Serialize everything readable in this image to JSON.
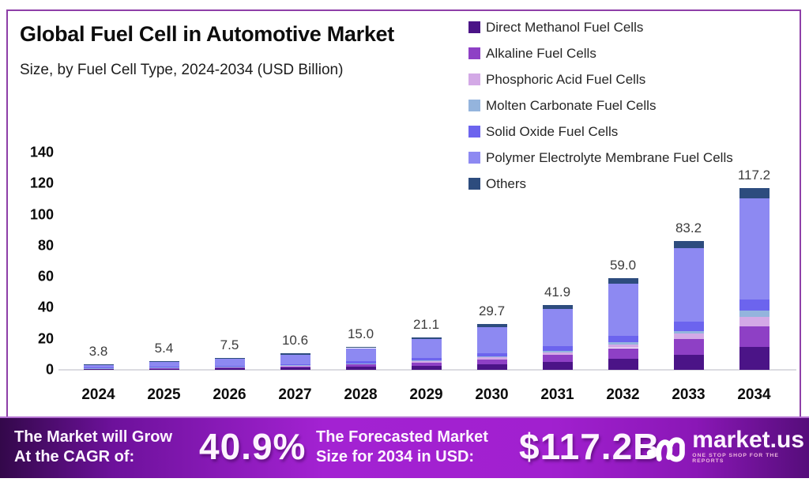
{
  "header": {
    "title": "Global Fuel Cell in Automotive Market",
    "subtitle": "Size, by Fuel Cell Type, 2024-2034 (USD Billion)"
  },
  "chart_data": {
    "type": "bar",
    "stacked": true,
    "title": "Global Fuel Cell in Automotive Market",
    "xlabel": "",
    "ylabel": "USD Billion",
    "ylim": [
      0,
      140
    ],
    "yticks": [
      0,
      20,
      40,
      60,
      80,
      100,
      120,
      140
    ],
    "grid": false,
    "legend_position": "top-right",
    "categories": [
      "2024",
      "2025",
      "2026",
      "2027",
      "2028",
      "2029",
      "2030",
      "2031",
      "2032",
      "2033",
      "2034"
    ],
    "totals": [
      3.8,
      5.4,
      7.5,
      10.6,
      15.0,
      21.1,
      29.7,
      41.9,
      59.0,
      83.2,
      117.2
    ],
    "total_labels": [
      "3.8",
      "5.4",
      "7.5",
      "10.6",
      "15.0",
      "21.1",
      "29.7",
      "41.9",
      "59.0",
      "83.2",
      "117.2"
    ],
    "series": [
      {
        "name": "Direct Methanol Fuel Cells",
        "color": "#4b1487",
        "values": [
          0.45,
          0.65,
          0.9,
          1.3,
          1.8,
          2.5,
          3.5,
          4.9,
          6.9,
          9.8,
          14.8
        ]
      },
      {
        "name": "Alkaline Fuel Cells",
        "color": "#8e40c5",
        "values": [
          0.4,
          0.55,
          0.8,
          1.1,
          1.6,
          2.3,
          3.3,
          4.7,
          7.1,
          10.0,
          13.2
        ]
      },
      {
        "name": "Phosphoric Acid Fuel Cells",
        "color": "#d3a9e6",
        "values": [
          0.15,
          0.2,
          0.3,
          0.4,
          0.6,
          0.8,
          1.1,
          1.6,
          2.3,
          3.4,
          5.9
        ]
      },
      {
        "name": "Molten Carbonate Fuel Cells",
        "color": "#94b4dd",
        "values": [
          0.08,
          0.1,
          0.15,
          0.2,
          0.3,
          0.45,
          0.6,
          0.9,
          1.3,
          1.8,
          4.3
        ]
      },
      {
        "name": "Solid Oxide Fuel Cells",
        "color": "#6c64ee",
        "values": [
          0.28,
          0.4,
          0.55,
          0.8,
          1.1,
          1.5,
          2.1,
          3.0,
          4.2,
          5.9,
          7.1
        ]
      },
      {
        "name": "Polymer Electrolyte Membrane Fuel Cells",
        "color": "#8d89f2",
        "values": [
          2.2,
          3.15,
          4.3,
          6.1,
          8.6,
          12.15,
          17.1,
          24.0,
          33.5,
          47.3,
          65.0
        ]
      },
      {
        "name": "Others",
        "color": "#2d4c7e",
        "values": [
          0.24,
          0.35,
          0.5,
          0.7,
          1.0,
          1.4,
          2.0,
          2.8,
          3.7,
          5.0,
          6.9
        ]
      }
    ]
  },
  "banner": {
    "cagr_label_line1": "The Market will Grow",
    "cagr_label_line2": "At the CAGR of:",
    "cagr_value": "40.9%",
    "forecast_label_line1": "The Forecasted Market",
    "forecast_label_line2": "Size for 2034 in USD:",
    "forecast_value": "$117.2B",
    "brand_name": "market.us",
    "brand_tagline": "ONE STOP SHOP FOR THE REPORTS"
  },
  "colors": {
    "frame_border": "#8e3fa8",
    "axis_line": "#dcdce1",
    "value_label": "#3c3c3c",
    "banner_gradient_dark": "#33084a",
    "banner_gradient_bright": "#a322d2",
    "banner_text": "#fdf4ff",
    "tagline": "#f0bade"
  }
}
